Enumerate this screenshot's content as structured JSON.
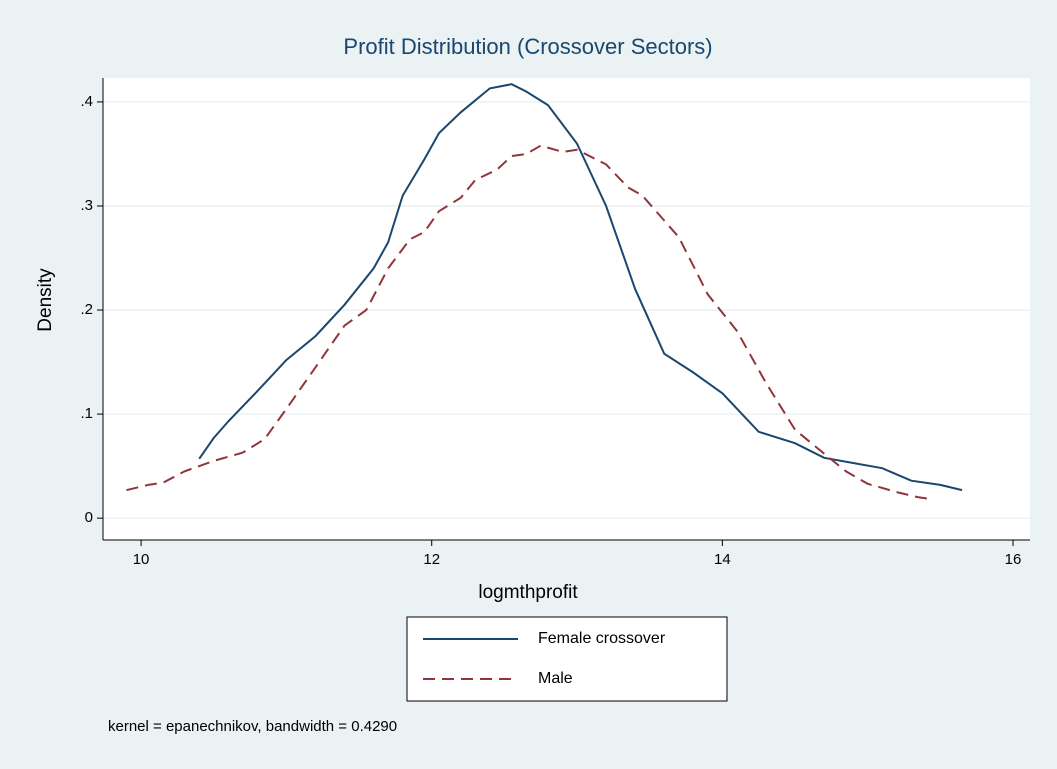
{
  "chart_data": {
    "type": "line",
    "title": "Profit Distribution (Crossover Sectors)",
    "xlabel": "logmthprofit",
    "ylabel": "Density",
    "note": "kernel = epanechnikov, bandwidth = 0.4290",
    "xlim": [
      9.738,
      16.117
    ],
    "ylim": [
      -0.021,
      0.423
    ],
    "xticks": [
      10,
      12,
      14,
      16
    ],
    "yticks": [
      0,
      {
        "value": 0.1,
        "label": ".1"
      },
      {
        "value": 0.2,
        "label": ".2"
      },
      {
        "value": 0.3,
        "label": ".3"
      },
      {
        "value": 0.4,
        "label": ".4"
      }
    ],
    "grid": true,
    "legend": "bottom",
    "series": [
      {
        "name": "Female crossover",
        "color": "#1a476f",
        "dash": "solid",
        "x": [
          10.4,
          10.5,
          10.6,
          10.8,
          11.0,
          11.2,
          11.4,
          11.6,
          11.7,
          11.8,
          11.95,
          12.05,
          12.2,
          12.4,
          12.55,
          12.65,
          12.8,
          13.0,
          13.2,
          13.4,
          13.6,
          13.8,
          14.0,
          14.25,
          14.5,
          14.7,
          14.9,
          15.1,
          15.3,
          15.5,
          15.65
        ],
        "values": [
          0.057,
          0.077,
          0.093,
          0.122,
          0.152,
          0.175,
          0.205,
          0.24,
          0.265,
          0.31,
          0.345,
          0.37,
          0.39,
          0.413,
          0.417,
          0.41,
          0.397,
          0.36,
          0.3,
          0.22,
          0.158,
          0.14,
          0.12,
          0.083,
          0.072,
          0.058,
          0.053,
          0.048,
          0.036,
          0.032,
          0.027
        ]
      },
      {
        "name": "Male",
        "color": "#90353b",
        "dash": "dashed",
        "x": [
          9.9,
          10.05,
          10.15,
          10.3,
          10.5,
          10.7,
          10.85,
          11.0,
          11.2,
          11.4,
          11.55,
          11.7,
          11.85,
          11.95,
          12.05,
          12.2,
          12.3,
          12.45,
          12.55,
          12.65,
          12.75,
          12.9,
          13.0,
          13.2,
          13.35,
          13.45,
          13.7,
          13.9,
          14.1,
          14.3,
          14.5,
          14.7,
          14.85,
          15.0,
          15.2,
          15.35,
          15.45
        ],
        "values": [
          0.027,
          0.032,
          0.034,
          0.045,
          0.055,
          0.063,
          0.076,
          0.105,
          0.145,
          0.185,
          0.2,
          0.24,
          0.268,
          0.275,
          0.295,
          0.308,
          0.325,
          0.335,
          0.348,
          0.35,
          0.358,
          0.352,
          0.354,
          0.34,
          0.318,
          0.31,
          0.27,
          0.215,
          0.18,
          0.13,
          0.085,
          0.062,
          0.045,
          0.033,
          0.025,
          0.02,
          0.018
        ]
      }
    ]
  }
}
